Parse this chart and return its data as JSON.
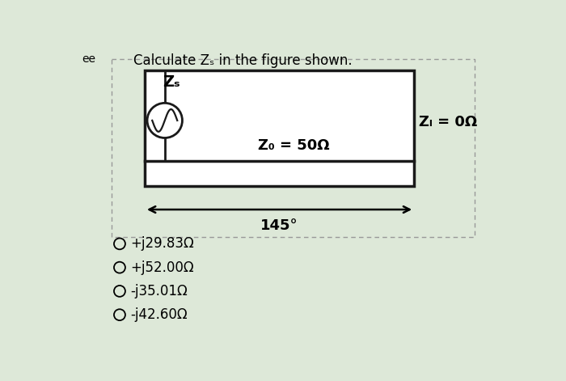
{
  "title": "Calculate Zₛ in the figure shown.",
  "bg_color": "#dde8d8",
  "circuit_box_color": "#ffffff",
  "circuit_border_color": "#1a1a1a",
  "outer_border_color": "#999999",
  "options": [
    "+j29.83Ω",
    "+j52.00Ω",
    "-j35.01Ω",
    "-j42.60Ω"
  ],
  "zs_label": "Zₛ",
  "z0_label": "Z₀ = 50Ω",
  "zl_label": "Zₗ = 0Ω",
  "angle_label": "145°",
  "font_size_title": 12,
  "font_size_labels": 12,
  "font_size_options": 12
}
